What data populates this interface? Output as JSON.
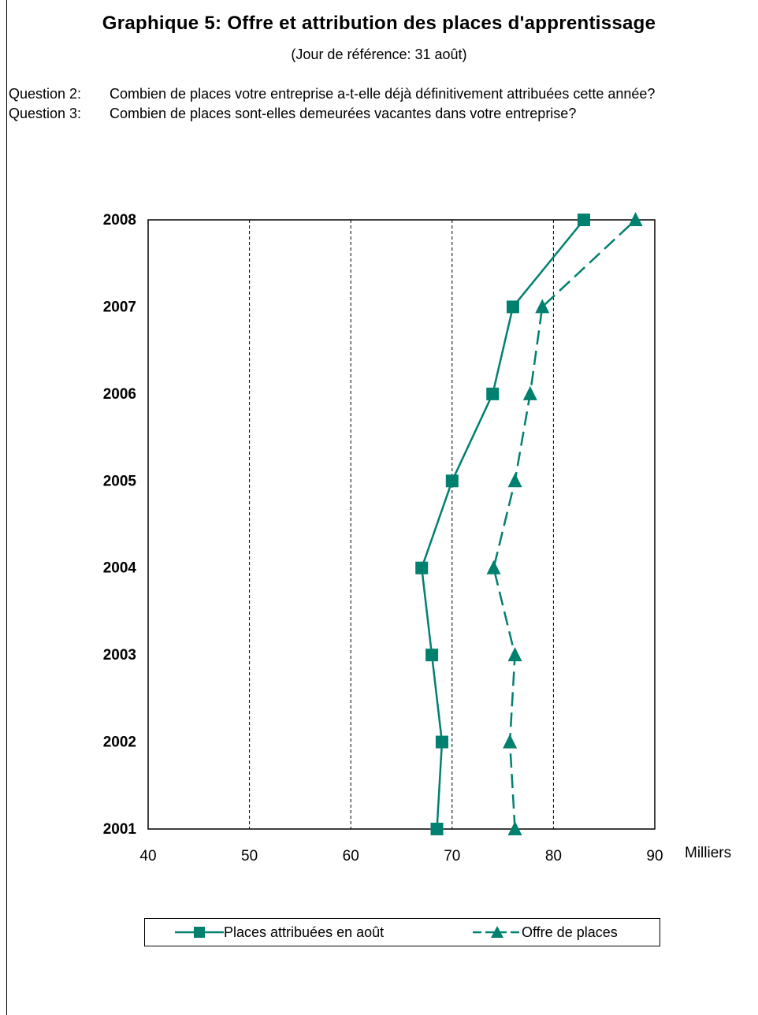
{
  "header": {
    "title": "Graphique 5: Offre et attribution des places d'apprentissage",
    "subtitle": "(Jour de référence: 31 août)"
  },
  "questions": [
    {
      "label": "Question 2:",
      "text": "Combien de places votre entreprise a-t-elle déjà définitivement attribuées cette année?"
    },
    {
      "label": "Question 3:",
      "text": "Combien de places sont-elles demeurées vacantes dans votre entreprise?"
    }
  ],
  "chart_data": {
    "type": "line",
    "orientation": "horizontal",
    "title": "Graphique 5: Offre et attribution des places d'apprentissage",
    "xlabel": "Milliers",
    "ylabel": "",
    "xlim": [
      40,
      90
    ],
    "xticks": [
      40,
      50,
      60,
      70,
      80,
      90
    ],
    "categories": [
      "2001",
      "2002",
      "2003",
      "2004",
      "2005",
      "2006",
      "2007",
      "2008"
    ],
    "grid": "vertical dashed",
    "legend_position": "bottom",
    "series": [
      {
        "name": "Places attribuées en août",
        "marker": "square",
        "line": "solid",
        "color": "#00806e",
        "values": [
          68.5,
          69.0,
          68.0,
          67.0,
          70.0,
          74.0,
          76.0,
          83.0
        ]
      },
      {
        "name": "Offre de places",
        "marker": "triangle",
        "line": "dashed",
        "color": "#00806e",
        "values": [
          76.2,
          75.7,
          76.2,
          74.1,
          76.2,
          77.7,
          78.9,
          88.1
        ]
      }
    ]
  }
}
